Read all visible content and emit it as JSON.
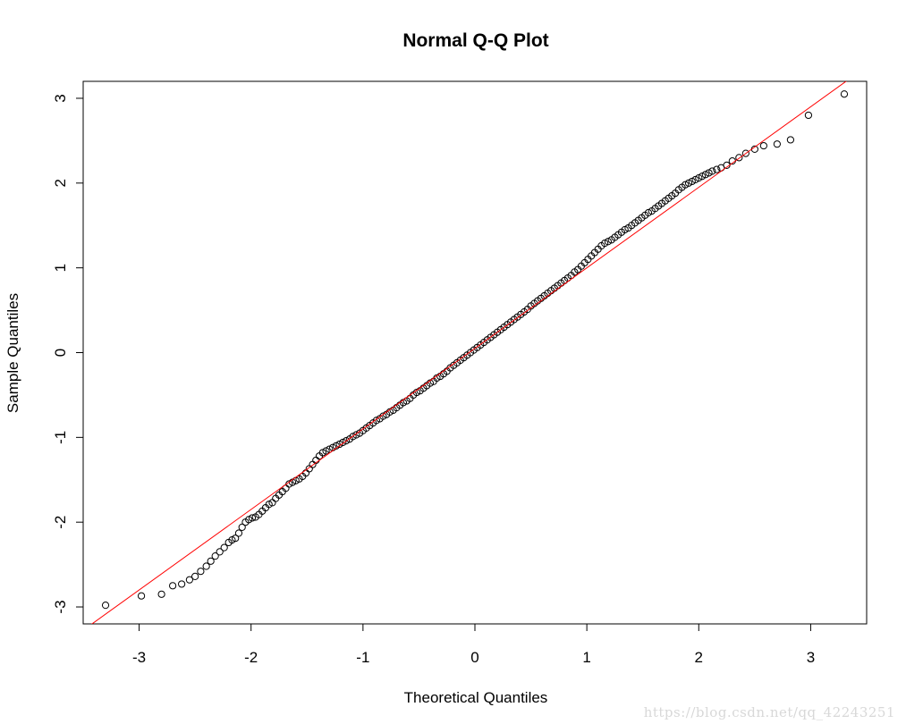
{
  "chart_data": {
    "type": "scatter",
    "title": "Normal Q-Q Plot",
    "xlabel": "Theoretical Quantiles",
    "ylabel": "Sample Quantiles",
    "xlim": [
      -3.5,
      3.5
    ],
    "ylim": [
      -3.2,
      3.2
    ],
    "x_ticks": [
      -3,
      -2,
      -1,
      0,
      1,
      2,
      3
    ],
    "y_ticks": [
      -3,
      -2,
      -1,
      0,
      1,
      2,
      3
    ],
    "x_tick_labels": [
      "-3",
      "-2",
      "-1",
      "0",
      "1",
      "2",
      "3"
    ],
    "y_tick_labels": [
      "-3",
      "-2",
      "-1",
      "0",
      "1",
      "2",
      "3"
    ],
    "grid": false,
    "reference_line": {
      "intercept": 0.05,
      "slope": 0.95,
      "color": "#ff0000"
    },
    "point_color": "#000000",
    "series": [
      {
        "x": [
          -3.3,
          -2.98,
          -2.8,
          -2.7,
          -2.62,
          -2.55,
          -2.5,
          -2.45,
          -2.4,
          -2.36,
          -2.32,
          -2.28,
          -2.24,
          -2.2,
          -2.17,
          -2.14,
          -2.11,
          -2.08,
          -2.05,
          -2.02,
          -1.99,
          -1.96,
          -1.93,
          -1.9,
          -1.87,
          -1.84,
          -1.81,
          -1.78,
          -1.75,
          -1.72,
          -1.69,
          -1.66,
          -1.63,
          -1.6,
          -1.57,
          -1.54,
          -1.51,
          -1.48,
          -1.45,
          -1.42,
          -1.39,
          -1.36,
          -1.33,
          -1.3,
          -1.27,
          -1.24,
          -1.21,
          -1.18,
          -1.15,
          -1.12,
          -1.09,
          -1.06,
          -1.03,
          -1.0,
          -0.97,
          -0.94,
          -0.91,
          -0.88,
          -0.85,
          -0.82,
          -0.79,
          -0.76,
          -0.73,
          -0.7,
          -0.67,
          -0.64,
          -0.61,
          -0.58,
          -0.55,
          -0.52,
          -0.49,
          -0.46,
          -0.43,
          -0.4,
          -0.37,
          -0.34,
          -0.31,
          -0.28,
          -0.25,
          -0.22,
          -0.19,
          -0.16,
          -0.13,
          -0.1,
          -0.07,
          -0.04,
          -0.01,
          0.02,
          0.05,
          0.08,
          0.11,
          0.14,
          0.17,
          0.2,
          0.23,
          0.26,
          0.29,
          0.32,
          0.35,
          0.38,
          0.41,
          0.44,
          0.47,
          0.5,
          0.53,
          0.56,
          0.59,
          0.62,
          0.65,
          0.68,
          0.71,
          0.74,
          0.77,
          0.8,
          0.83,
          0.86,
          0.89,
          0.92,
          0.95,
          0.98,
          1.01,
          1.04,
          1.07,
          1.1,
          1.13,
          1.16,
          1.19,
          1.22,
          1.25,
          1.28,
          1.31,
          1.34,
          1.37,
          1.4,
          1.43,
          1.46,
          1.49,
          1.52,
          1.55,
          1.58,
          1.61,
          1.64,
          1.67,
          1.7,
          1.73,
          1.76,
          1.79,
          1.82,
          1.85,
          1.88,
          1.91,
          1.94,
          1.97,
          2.0,
          2.03,
          2.06,
          2.09,
          2.12,
          2.16,
          2.2,
          2.25,
          2.3,
          2.36,
          2.42,
          2.5,
          2.58,
          2.7,
          2.82,
          2.98,
          3.3
        ],
        "y": [
          -2.98,
          -2.87,
          -2.85,
          -2.75,
          -2.73,
          -2.68,
          -2.64,
          -2.58,
          -2.52,
          -2.46,
          -2.4,
          -2.35,
          -2.3,
          -2.24,
          -2.21,
          -2.19,
          -2.13,
          -2.06,
          -2.0,
          -1.97,
          -1.95,
          -1.94,
          -1.91,
          -1.87,
          -1.83,
          -1.79,
          -1.77,
          -1.72,
          -1.68,
          -1.64,
          -1.6,
          -1.55,
          -1.53,
          -1.51,
          -1.49,
          -1.46,
          -1.42,
          -1.37,
          -1.32,
          -1.27,
          -1.22,
          -1.18,
          -1.16,
          -1.14,
          -1.12,
          -1.1,
          -1.08,
          -1.06,
          -1.04,
          -1.02,
          -0.99,
          -0.97,
          -0.95,
          -0.92,
          -0.89,
          -0.86,
          -0.83,
          -0.8,
          -0.78,
          -0.75,
          -0.73,
          -0.7,
          -0.68,
          -0.65,
          -0.62,
          -0.59,
          -0.57,
          -0.54,
          -0.5,
          -0.47,
          -0.45,
          -0.42,
          -0.39,
          -0.36,
          -0.34,
          -0.3,
          -0.28,
          -0.25,
          -0.22,
          -0.18,
          -0.15,
          -0.12,
          -0.09,
          -0.06,
          -0.03,
          0.0,
          0.03,
          0.06,
          0.09,
          0.12,
          0.15,
          0.18,
          0.21,
          0.24,
          0.27,
          0.3,
          0.33,
          0.36,
          0.39,
          0.42,
          0.45,
          0.48,
          0.51,
          0.55,
          0.58,
          0.61,
          0.64,
          0.67,
          0.7,
          0.73,
          0.76,
          0.79,
          0.82,
          0.85,
          0.88,
          0.91,
          0.95,
          0.98,
          1.02,
          1.06,
          1.1,
          1.14,
          1.18,
          1.22,
          1.26,
          1.29,
          1.31,
          1.33,
          1.36,
          1.39,
          1.42,
          1.45,
          1.47,
          1.5,
          1.53,
          1.56,
          1.59,
          1.62,
          1.65,
          1.67,
          1.7,
          1.73,
          1.76,
          1.79,
          1.82,
          1.85,
          1.88,
          1.92,
          1.95,
          1.98,
          2.0,
          2.02,
          2.04,
          2.06,
          2.08,
          2.1,
          2.12,
          2.14,
          2.16,
          2.18,
          2.21,
          2.26,
          2.3,
          2.35,
          2.4,
          2.44,
          2.46,
          2.51,
          2.8,
          3.05
        ]
      }
    ]
  },
  "watermark": "https://blog.csdn.net/qq_42243251"
}
